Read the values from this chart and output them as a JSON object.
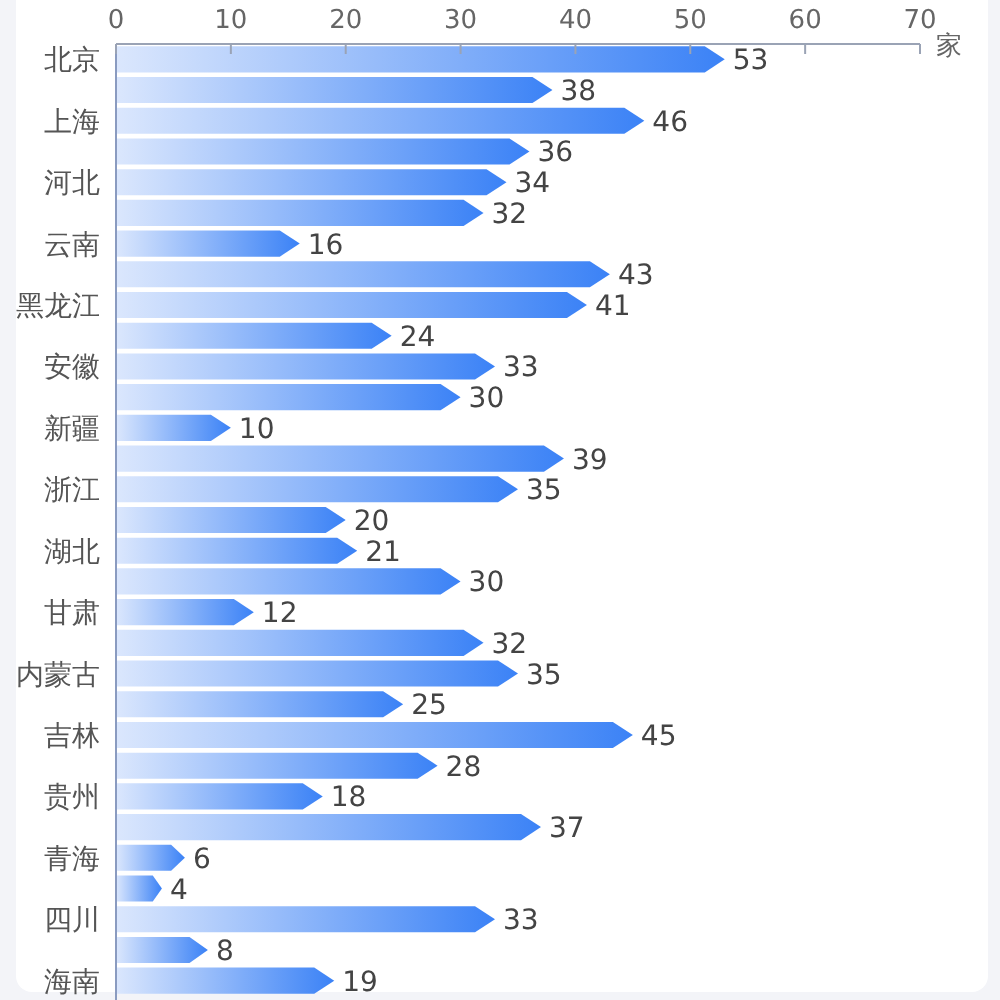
{
  "chart_data": {
    "type": "bar",
    "orientation": "horizontal",
    "xlabel": "家",
    "categories": [
      "北京",
      null,
      "上海",
      null,
      "河北",
      null,
      "云南",
      null,
      "黑龙江",
      null,
      "安徽",
      null,
      "新疆",
      null,
      "浙江",
      null,
      "湖北",
      null,
      "甘肃",
      null,
      "内蒙古",
      null,
      "吉林",
      null,
      "贵州",
      null,
      "青海",
      null,
      "四川",
      null,
      "海南"
    ],
    "values": [
      53,
      38,
      46,
      36,
      34,
      32,
      16,
      43,
      41,
      24,
      33,
      30,
      10,
      39,
      35,
      20,
      21,
      30,
      12,
      32,
      35,
      25,
      45,
      28,
      18,
      37,
      6,
      4,
      33,
      8,
      19
    ],
    "color": "#3b82f6",
    "xlim": [
      0,
      70
    ],
    "xticks": [
      0,
      10,
      20,
      30,
      40,
      50,
      60,
      70
    ],
    "data_labels": true
  }
}
